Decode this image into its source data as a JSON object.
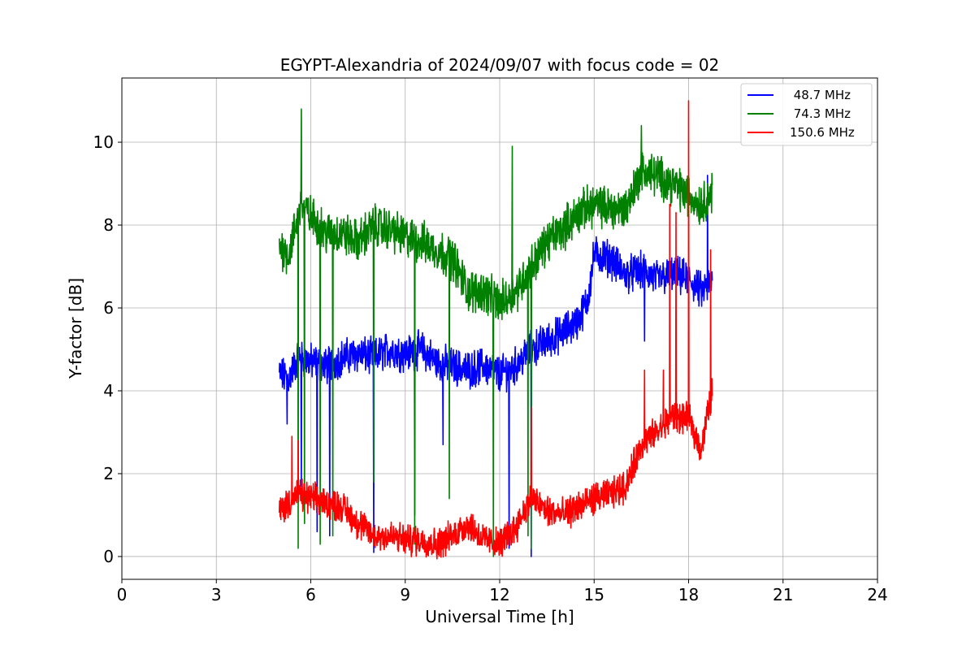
{
  "chart_data": {
    "type": "line",
    "title": "EGYPT-Alexandria of 2024/09/07 with focus code = 02",
    "xlabel": "Universal Time [h]",
    "ylabel": "Y-factor [dB]",
    "xlim": [
      0,
      24
    ],
    "ylim": [
      -0.55,
      11.55
    ],
    "xticks": [
      0,
      3,
      6,
      9,
      12,
      15,
      18,
      21,
      24
    ],
    "yticks": [
      0,
      2,
      4,
      6,
      8,
      10
    ],
    "grid": true,
    "legend_position": "top-right",
    "series": [
      {
        "name": " 48.7 MHz",
        "color": "#0000ff",
        "x": [
          5.0,
          5.3,
          5.6,
          6.0,
          6.5,
          7.0,
          7.5,
          8.0,
          8.5,
          9.0,
          9.5,
          10.0,
          10.5,
          11.0,
          11.5,
          12.0,
          12.5,
          13.0,
          13.5,
          14.0,
          14.5,
          14.8,
          15.0,
          15.5,
          16.0,
          16.5,
          17.0,
          17.5,
          18.0,
          18.4,
          18.75
        ],
        "y": [
          4.4,
          4.3,
          4.8,
          4.7,
          4.6,
          4.8,
          4.9,
          4.8,
          5.0,
          4.9,
          5.0,
          4.7,
          4.6,
          4.5,
          4.6,
          4.4,
          4.6,
          5.0,
          5.2,
          5.4,
          5.7,
          6.2,
          7.3,
          7.2,
          6.8,
          6.9,
          6.7,
          6.8,
          6.7,
          6.4,
          6.6
        ],
        "spikes": [
          {
            "x": 5.25,
            "y": 3.2
          },
          {
            "x": 5.7,
            "y": 1.7
          },
          {
            "x": 6.2,
            "y": 0.6
          },
          {
            "x": 6.6,
            "y": 0.5
          },
          {
            "x": 8.0,
            "y": 0.1
          },
          {
            "x": 9.3,
            "y": 1.0
          },
          {
            "x": 10.2,
            "y": 2.7
          },
          {
            "x": 12.3,
            "y": 0.2
          },
          {
            "x": 13.0,
            "y": 0.0
          },
          {
            "x": 16.6,
            "y": 5.2
          },
          {
            "x": 18.6,
            "y": 9.2
          }
        ]
      },
      {
        "name": " 74.3 MHz",
        "color": "#008000",
        "x": [
          5.0,
          5.3,
          5.7,
          6.0,
          6.5,
          7.0,
          7.5,
          8.0,
          8.5,
          9.0,
          9.5,
          10.0,
          10.5,
          11.0,
          11.5,
          12.0,
          12.5,
          13.0,
          13.5,
          14.0,
          14.5,
          15.0,
          15.5,
          16.0,
          16.5,
          17.0,
          17.5,
          18.0,
          18.4,
          18.75
        ],
        "y": [
          7.5,
          7.3,
          8.5,
          8.2,
          7.8,
          7.8,
          7.6,
          8.0,
          7.9,
          7.7,
          7.6,
          7.4,
          7.2,
          6.4,
          6.4,
          6.1,
          6.4,
          7.0,
          7.6,
          7.9,
          8.3,
          8.5,
          8.4,
          8.4,
          9.3,
          9.2,
          9.0,
          8.7,
          8.5,
          8.8
        ],
        "spikes": [
          {
            "x": 5.7,
            "y": 10.8
          },
          {
            "x": 5.6,
            "y": 0.2
          },
          {
            "x": 5.8,
            "y": 0.8
          },
          {
            "x": 6.3,
            "y": 0.3
          },
          {
            "x": 6.7,
            "y": 0.5
          },
          {
            "x": 8.0,
            "y": 1.8
          },
          {
            "x": 9.3,
            "y": 0.3
          },
          {
            "x": 10.4,
            "y": 1.4
          },
          {
            "x": 11.8,
            "y": 0.0
          },
          {
            "x": 12.4,
            "y": 9.9
          },
          {
            "x": 12.9,
            "y": 0.5
          },
          {
            "x": 13.0,
            "y": 0.2
          },
          {
            "x": 16.5,
            "y": 10.4
          }
        ]
      },
      {
        "name": "150.6 MHz",
        "color": "#ff0000",
        "x": [
          5.0,
          5.3,
          5.6,
          6.0,
          6.5,
          7.0,
          7.5,
          8.0,
          8.5,
          9.0,
          9.5,
          10.0,
          10.5,
          11.0,
          11.5,
          12.0,
          12.5,
          13.0,
          13.5,
          14.0,
          14.5,
          15.0,
          15.5,
          16.0,
          16.5,
          17.0,
          17.5,
          18.0,
          18.4,
          18.75
        ],
        "y": [
          1.1,
          1.3,
          1.5,
          1.4,
          1.3,
          1.2,
          0.8,
          0.5,
          0.5,
          0.4,
          0.4,
          0.3,
          0.5,
          0.8,
          0.4,
          0.3,
          0.7,
          1.4,
          1.1,
          1.0,
          1.2,
          1.4,
          1.5,
          1.7,
          2.7,
          3.0,
          3.4,
          3.3,
          2.6,
          4.0
        ],
        "spikes": [
          {
            "x": 5.4,
            "y": 2.9
          },
          {
            "x": 5.6,
            "y": 2.8
          },
          {
            "x": 13.0,
            "y": 3.6
          },
          {
            "x": 16.6,
            "y": 4.5
          },
          {
            "x": 17.2,
            "y": 4.5
          },
          {
            "x": 17.4,
            "y": 8.5
          },
          {
            "x": 17.6,
            "y": 8.3
          },
          {
            "x": 18.0,
            "y": 11.0
          },
          {
            "x": 18.7,
            "y": 7.4
          }
        ]
      }
    ]
  }
}
